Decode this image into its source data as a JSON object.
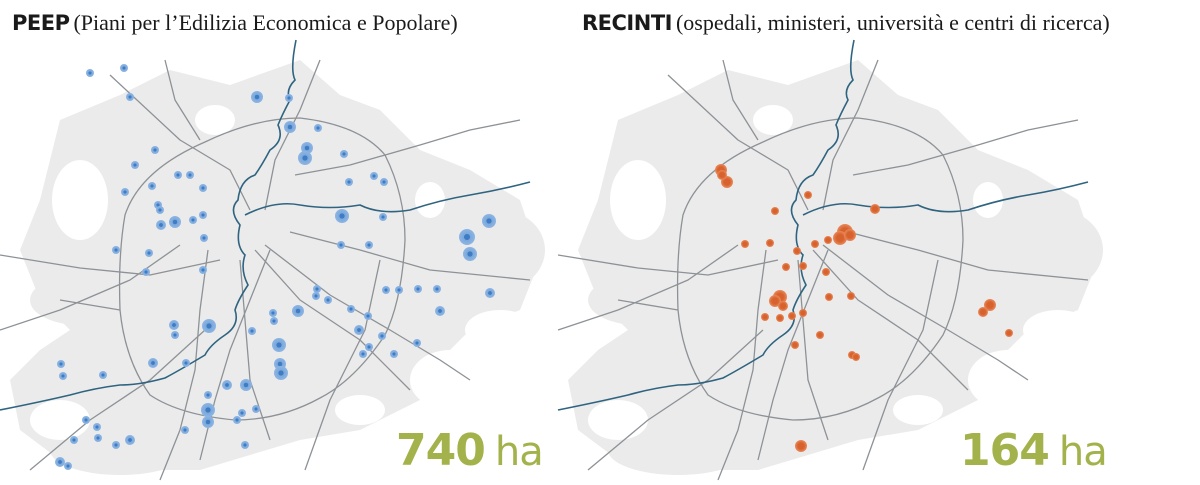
{
  "colors": {
    "urban_fill": "#ebebeb",
    "road": "#8d9297",
    "river": "#2f6480",
    "peep_dot": "#5f95d3",
    "recinti_dot": "#e0733f",
    "area_text": "#a3b24a"
  },
  "panels": [
    {
      "id": "peep",
      "title_abbr": "PEEP",
      "title_desc": "(Piani per l’Edilizia Economica e Popolare)",
      "area_value": "740",
      "area_unit": "ha"
    },
    {
      "id": "recinti",
      "title_abbr": "RECINTI",
      "title_desc": "(ospedali, ministeri, università e centri di ricerca)",
      "area_value": "164",
      "area_unit": "ha"
    }
  ]
}
